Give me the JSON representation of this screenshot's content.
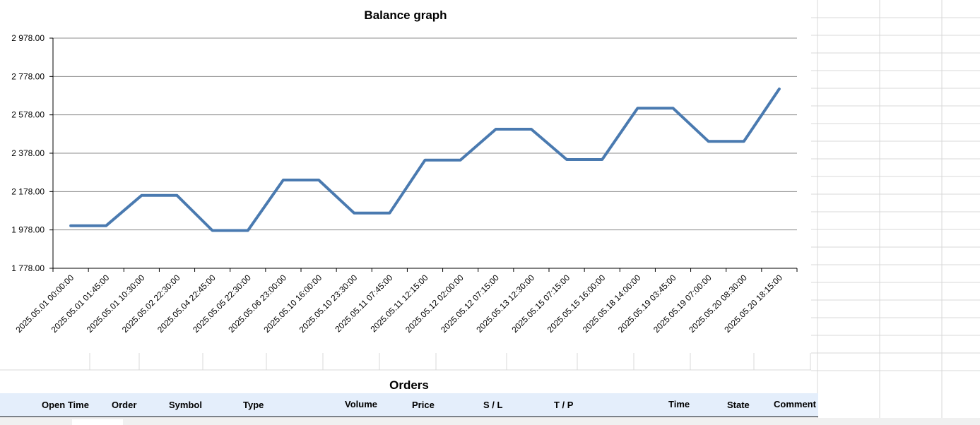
{
  "chart_data": {
    "type": "line",
    "title": "Balance graph",
    "xlabel": "",
    "ylabel": "",
    "categories": [
      "2025.05.01 00:00:00",
      "2025.05.01 01:45:00",
      "2025.05.01 10:30:00",
      "2025.05.02 22:30:00",
      "2025.05.04 22:45:00",
      "2025.05.05 22:30:00",
      "2025.05.06 23:00:00",
      "2025.05.10 16:00:00",
      "2025.05.10 23:30:00",
      "2025.05.11 07:45:00",
      "2025.05.11 12:15:00",
      "2025.05.12 02:00:00",
      "2025.05.12 07:15:00",
      "2025.05.13 12:30:00",
      "2025.05.15 07:15:00",
      "2025.05.15 16:00:00",
      "2025.05.18 14:00:00",
      "2025.05.19 03:45:00",
      "2025.05.19 07:00:00",
      "2025.05.20 08:30:00",
      "2025.05.20 18:15:00"
    ],
    "series": [
      {
        "values": [
          2000,
          2000,
          2158,
          2158,
          1975,
          1975,
          2238,
          2238,
          2066,
          2066,
          2342,
          2342,
          2503,
          2503,
          2345,
          2345,
          2613,
          2613,
          2440,
          2440,
          2713
        ]
      }
    ],
    "yticks": [
      "2 978.00",
      "2 778.00",
      "2 578.00",
      "2 378.00",
      "2 178.00",
      "1 978.00",
      "1 778.00"
    ],
    "ylim": [
      1778,
      2978
    ],
    "grid": true,
    "legend": "none",
    "line_color": "#4a7ab0"
  },
  "orders": {
    "title": "Orders",
    "columns": [
      "Open Time",
      "Order",
      "Symbol",
      "Type",
      "Volume",
      "Price",
      "S / L",
      "T / P",
      "Time",
      "State",
      "Comment"
    ]
  },
  "colors": {
    "header_bg": "#e4eefb",
    "gridline": "#8c8c8c"
  }
}
